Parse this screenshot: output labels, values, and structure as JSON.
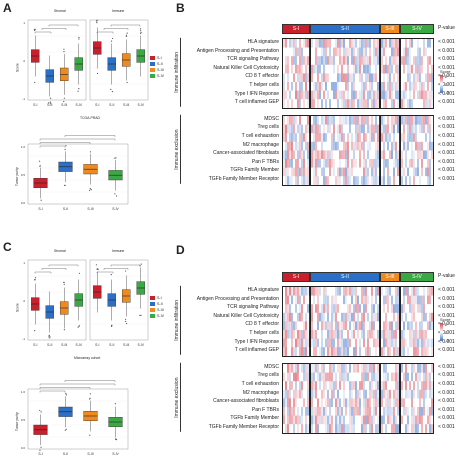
{
  "panels": {
    "A": {
      "letter": "A",
      "top_plot": {
        "facets": [
          "Stromal",
          "Immune"
        ],
        "ylabel": "Score",
        "xlabel": "TCGA-PRAD",
        "xticks": [
          "S-I",
          "S-II",
          "S-III",
          "S-IV",
          "S-I",
          "S-II",
          "S-III",
          "S-IV"
        ]
      },
      "legend": [
        "S-I",
        "S-II",
        "S-III",
        "S-IV"
      ],
      "bottom_plot": {
        "ylabel": "Tumor purity",
        "xticks": [
          "S-I",
          "S-II",
          "S-III",
          "S-IV"
        ]
      }
    },
    "B": {
      "letter": "B",
      "groups": [
        "S-I",
        "S-II",
        "S-III",
        "S-IV"
      ],
      "pvalue_header": "P-value",
      "section1_label": "Immune infiltration",
      "section2_label": "Immune exclusion",
      "rows1": [
        "HLA signature",
        "Antigen Processing and Presentation",
        "TCR signaling Pathway",
        "Natural Killer Cell Cytotoxicity",
        "CD 8 T effector",
        "T helper cells",
        "Type I IFN Reponse",
        "T cell inflamed GEP"
      ],
      "rows2": [
        "MDSC",
        "Treg cells",
        "T cell exhaustion",
        "M2 macrophage",
        "Cancer-associated fibroblasts",
        "Pan F TBRs",
        "TGFb Family Member",
        "TGFb Family Member Receptor"
      ],
      "pvalue": "< 0.001",
      "scale_title": "Score",
      "scale_ticks": [
        "2",
        "0",
        "-2"
      ]
    },
    "C": {
      "letter": "C",
      "top_plot": {
        "facets": [
          "Stromal",
          "Immune"
        ],
        "ylabel": "Score",
        "xlabel": "Microarray cohort",
        "xticks": [
          "S-I",
          "S-II",
          "S-III",
          "S-IV",
          "S-I",
          "S-II",
          "S-III",
          "S-IV"
        ]
      },
      "legend": [
        "S-I",
        "S-II",
        "S-III",
        "S-IV"
      ],
      "bottom_plot": {
        "ylabel": "Tumor purity",
        "xticks": [
          "S-I",
          "S-II",
          "S-III",
          "S-IV"
        ]
      }
    },
    "D": {
      "letter": "D",
      "groups": [
        "S-I",
        "S-II",
        "S-III",
        "S-IV"
      ],
      "pvalue_header": "P-value",
      "section1_label": "Immune infiltration",
      "section2_label": "Immune exclusion",
      "rows1": [
        "HLA signature",
        "Antigen Processing and Presentation",
        "TCR signaling Pathway",
        "Natural Killer Cell Cytotoxicity",
        "CD 8 T effector",
        "T helper cells",
        "Type I IFN Reponse",
        "T cell inflamed GEP"
      ],
      "rows2": [
        "MDSC",
        "Treg cells",
        "T cell exhaustion",
        "M2 macrophage",
        "Cancer-associated fibroblasts",
        "Pan F TBRs",
        "TGFb Family Member",
        "TGFb Family Member Receptor"
      ],
      "pvalue": "< 0.001",
      "scale_title": "Score",
      "scale_ticks": [
        "2",
        "0",
        "-2"
      ]
    }
  },
  "colors": {
    "S-I": "#c8202c",
    "S-II": "#2b6fc7",
    "S-III": "#ef8a1f",
    "S-IV": "#3aa843",
    "heat_high": "#d6404e",
    "heat_low": "#3b6fc6"
  },
  "chart_data": [
    {
      "type": "box",
      "panel": "A-top",
      "facets": [
        "Stromal",
        "Immune"
      ],
      "categories": [
        "S-I",
        "S-II",
        "S-III",
        "S-IV"
      ],
      "series": [
        {
          "name": "Stromal",
          "median": [
            0.55,
            0.3,
            0.32,
            0.45
          ]
        },
        {
          "name": "Immune",
          "median": [
            0.65,
            0.45,
            0.5,
            0.55
          ]
        }
      ],
      "ylabel": "Score",
      "xlabel": "TCGA-PRAD"
    },
    {
      "type": "box",
      "panel": "A-bottom",
      "categories": [
        "S-I",
        "S-II",
        "S-III",
        "S-IV"
      ],
      "values": [
        0.35,
        0.62,
        0.58,
        0.48
      ],
      "ylabel": "Tumor purity"
    },
    {
      "type": "box",
      "panel": "C-top",
      "facets": [
        "Stromal",
        "Immune"
      ],
      "categories": [
        "S-I",
        "S-II",
        "S-III",
        "S-IV"
      ],
      "series": [
        {
          "name": "Stromal",
          "median": [
            0.45,
            0.35,
            0.4,
            0.5
          ]
        },
        {
          "name": "Immune",
          "median": [
            0.6,
            0.5,
            0.55,
            0.65
          ]
        }
      ],
      "ylabel": "Score",
      "xlabel": "Microarray cohort"
    },
    {
      "type": "box",
      "panel": "C-bottom",
      "categories": [
        "S-I",
        "S-II",
        "S-III",
        "S-IV"
      ],
      "values": [
        0.32,
        0.62,
        0.55,
        0.45
      ],
      "ylabel": "Tumor purity"
    },
    {
      "type": "heatmap",
      "panel": "B",
      "rows": 16,
      "groups": [
        "S-I",
        "S-II",
        "S-III",
        "S-IV"
      ]
    },
    {
      "type": "heatmap",
      "panel": "D",
      "rows": 16,
      "groups": [
        "S-I",
        "S-II",
        "S-III",
        "S-IV"
      ]
    }
  ]
}
